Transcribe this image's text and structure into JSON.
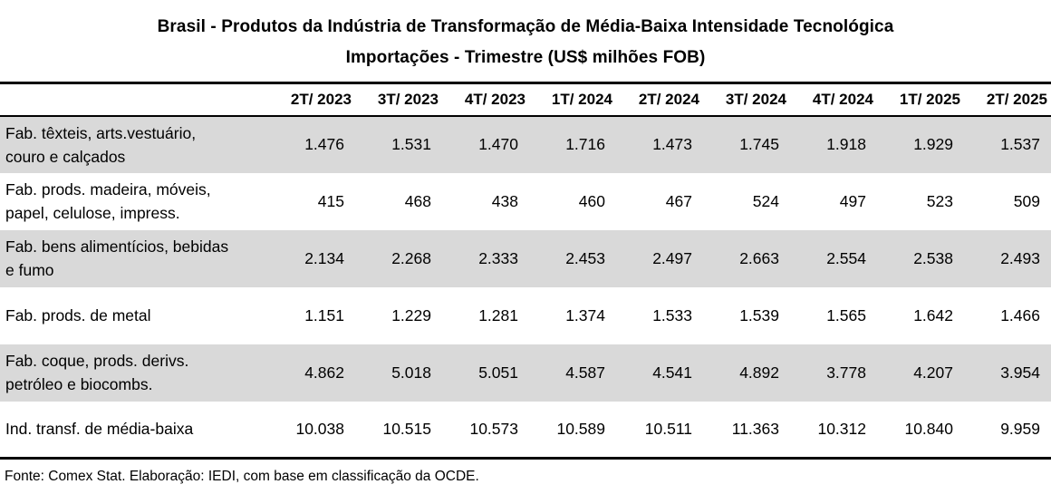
{
  "title": {
    "line1": "Brasil - Produtos da Indústria de Transformação de Média-Baixa Intensidade Tecnológica",
    "line2": "Importações - Trimestre (US$ milhões FOB)"
  },
  "table": {
    "columns": [
      "2T/ 2023",
      "3T/ 2023",
      "4T/ 2023",
      "1T/ 2024",
      "2T/ 2024",
      "3T/ 2024",
      "4T/ 2024",
      "1T/ 2025",
      "2T/ 2025"
    ],
    "rows": [
      {
        "label": "Fab. têxteis, arts.vestuário,\ncouro e calçados",
        "values": [
          "1.476",
          "1.531",
          "1.470",
          "1.716",
          "1.473",
          "1.745",
          "1.918",
          "1.929",
          "1.537"
        ],
        "shaded": true
      },
      {
        "label": "Fab. prods. madeira, móveis,\npapel, celulose, impress.",
        "values": [
          "415",
          "468",
          "438",
          "460",
          "467",
          "524",
          "497",
          "523",
          "509"
        ],
        "shaded": false
      },
      {
        "label": "Fab. bens alimentícios, bebidas\ne fumo",
        "values": [
          "2.134",
          "2.268",
          "2.333",
          "2.453",
          "2.497",
          "2.663",
          "2.554",
          "2.538",
          "2.493"
        ],
        "shaded": true
      },
      {
        "label": "Fab. prods. de metal",
        "values": [
          "1.151",
          "1.229",
          "1.281",
          "1.374",
          "1.533",
          "1.539",
          "1.565",
          "1.642",
          "1.466"
        ],
        "shaded": false
      },
      {
        "label": "Fab. coque, prods. derivs.\npetróleo e biocombs.",
        "values": [
          "4.862",
          "5.018",
          "5.051",
          "4.587",
          "4.541",
          "4.892",
          "3.778",
          "4.207",
          "3.954"
        ],
        "shaded": true
      },
      {
        "label": "Ind. transf. de média-baixa",
        "values": [
          "10.038",
          "10.515",
          "10.573",
          "10.589",
          "10.511",
          "11.363",
          "10.312",
          "10.840",
          "9.959"
        ],
        "shaded": false
      }
    ]
  },
  "footer": {
    "source": "Fonte: Comex Stat. Elaboração: IEDI, com base em classificação da OCDE."
  },
  "colors": {
    "row_shade": "#d9d9d9",
    "border": "#000000",
    "text": "#000000",
    "background": "#ffffff"
  },
  "chart_data": {
    "type": "table",
    "title": "Brasil - Produtos da Indústria de Transformação de Média-Baixa Intensidade Tecnológica",
    "subtitle": "Importações - Trimestre (US$ milhões FOB)",
    "units": "US$ milhões FOB",
    "categories": [
      "2T/2023",
      "3T/2023",
      "4T/2023",
      "1T/2024",
      "2T/2024",
      "3T/2024",
      "4T/2024",
      "1T/2025",
      "2T/2025"
    ],
    "series": [
      {
        "name": "Fab. têxteis, arts.vestuário, couro e calçados",
        "values": [
          1476,
          1531,
          1470,
          1716,
          1473,
          1745,
          1918,
          1929,
          1537
        ]
      },
      {
        "name": "Fab. prods. madeira, móveis, papel, celulose, impress.",
        "values": [
          415,
          468,
          438,
          460,
          467,
          524,
          497,
          523,
          509
        ]
      },
      {
        "name": "Fab. bens alimentícios, bebidas e fumo",
        "values": [
          2134,
          2268,
          2333,
          2453,
          2497,
          2663,
          2554,
          2538,
          2493
        ]
      },
      {
        "name": "Fab. prods. de metal",
        "values": [
          1151,
          1229,
          1281,
          1374,
          1533,
          1539,
          1565,
          1642,
          1466
        ]
      },
      {
        "name": "Fab. coque, prods. derivs. petróleo e biocombs.",
        "values": [
          4862,
          5018,
          5051,
          4587,
          4541,
          4892,
          3778,
          4207,
          3954
        ]
      },
      {
        "name": "Ind. transf. de média-baixa",
        "values": [
          10038,
          10515,
          10573,
          10589,
          10511,
          11363,
          10312,
          10840,
          9959
        ]
      }
    ],
    "source": "Fonte: Comex Stat. Elaboração: IEDI, com base em classificação da OCDE."
  }
}
